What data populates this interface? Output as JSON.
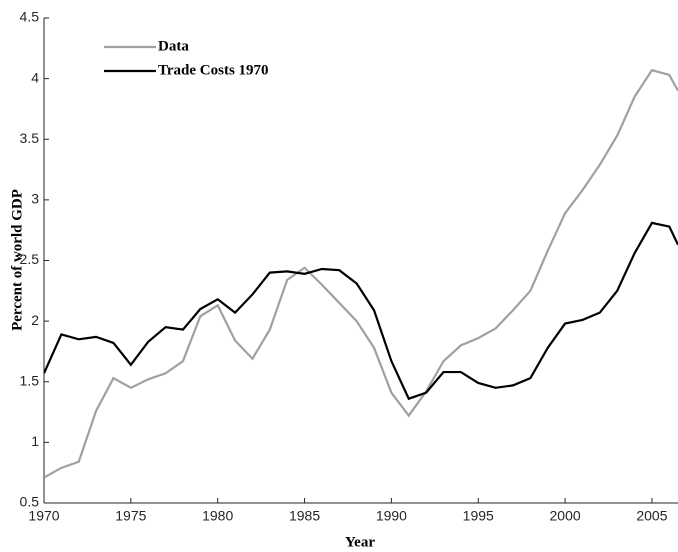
{
  "chart_data": {
    "type": "line",
    "xlabel": "Year",
    "ylabel": "Percent of world GDP",
    "x": [
      1970,
      1971,
      1972,
      1973,
      1974,
      1975,
      1976,
      1977,
      1978,
      1979,
      1980,
      1981,
      1982,
      1983,
      1984,
      1985,
      1986,
      1987,
      1988,
      1989,
      1990,
      1991,
      1992,
      1993,
      1994,
      1995,
      1996,
      1997,
      1998,
      1999,
      2000,
      2001,
      2002,
      2003,
      2004,
      2005,
      2006,
      2006.5
    ],
    "series": [
      {
        "name": "Data",
        "color": "#a0a0a0",
        "values": [
          0.71,
          0.79,
          0.84,
          1.26,
          1.53,
          1.45,
          1.52,
          1.57,
          1.67,
          2.04,
          2.13,
          1.84,
          1.69,
          1.93,
          2.34,
          2.44,
          2.3,
          2.15,
          2.0,
          1.78,
          1.41,
          1.22,
          1.42,
          1.67,
          1.8,
          1.86,
          1.94,
          2.09,
          2.25,
          2.58,
          2.89,
          3.08,
          3.29,
          3.53,
          3.85,
          4.07,
          4.03,
          3.9
        ]
      },
      {
        "name": "Trade Costs 1970",
        "color": "#000000",
        "values": [
          1.57,
          1.89,
          1.85,
          1.87,
          1.82,
          1.64,
          1.83,
          1.95,
          1.93,
          2.1,
          2.18,
          2.07,
          2.22,
          2.4,
          2.41,
          2.39,
          2.43,
          2.42,
          2.31,
          2.09,
          1.67,
          1.36,
          1.41,
          1.58,
          1.58,
          1.49,
          1.45,
          1.47,
          1.53,
          1.78,
          1.98,
          2.01,
          2.07,
          2.25,
          2.56,
          2.81,
          2.78,
          2.63
        ]
      }
    ],
    "xlim": [
      1970,
      2006.5
    ],
    "xticks": [
      1970,
      1975,
      1980,
      1985,
      1990,
      1995,
      2000,
      2005
    ],
    "ylim": [
      0.5,
      4.5
    ],
    "yticks": [
      0.5,
      1,
      1.5,
      2,
      2.5,
      3,
      3.5,
      4,
      4.5
    ],
    "legend": "upper left"
  }
}
